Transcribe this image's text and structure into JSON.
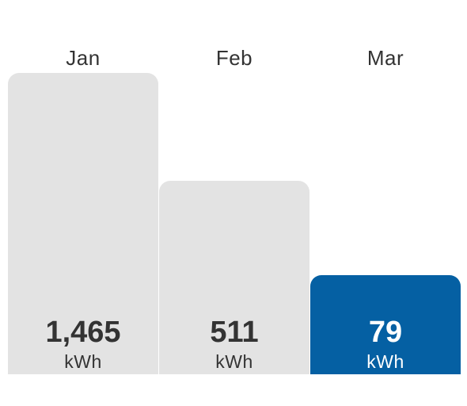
{
  "chart_data": {
    "type": "bar",
    "categories": [
      "Jan",
      "Feb",
      "Mar"
    ],
    "values": [
      1465,
      511,
      79
    ],
    "value_labels": [
      "1,465",
      "511",
      "79"
    ],
    "unit": "kWh",
    "highlight_index": 2,
    "title": "",
    "xlabel": "",
    "ylabel": "",
    "colors": {
      "default": "#e3e3e3",
      "highlight": "#0560a3",
      "text": "#333333",
      "highlight_text": "#ffffff"
    }
  }
}
